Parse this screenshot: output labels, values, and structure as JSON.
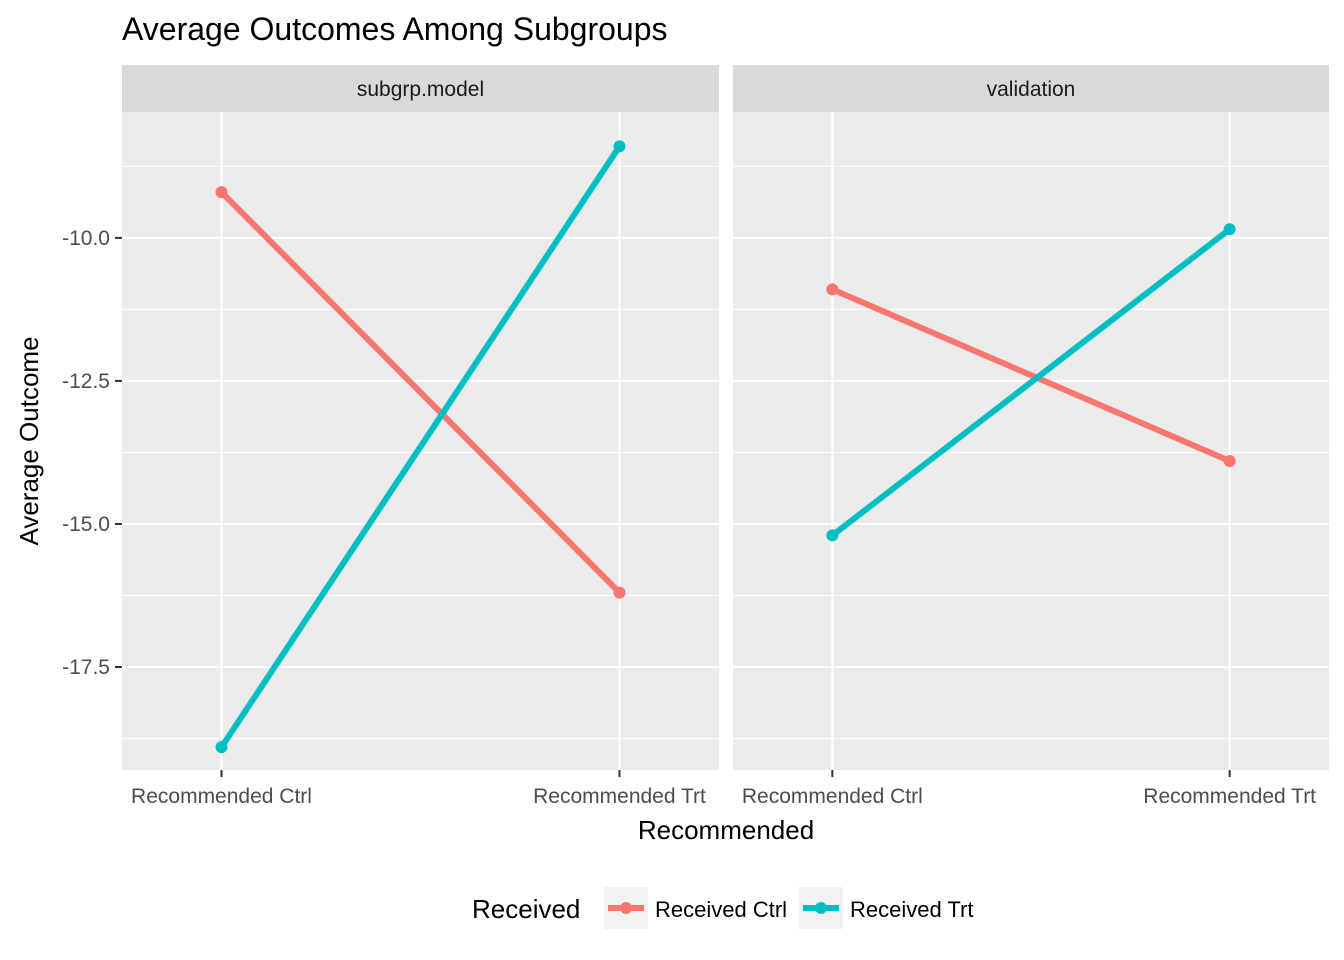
{
  "chart_data": {
    "type": "line",
    "title": "Average Outcomes Among Subgroups",
    "xlabel": "Recommended",
    "ylabel": "Average Outcome",
    "categories": [
      "Recommended Ctrl",
      "Recommended Trt"
    ],
    "ylim": [
      -19.3,
      -7.8
    ],
    "yticks": [
      -10.0,
      -12.5,
      -15.0,
      -17.5
    ],
    "ytick_labels": [
      "-10.0",
      "-12.5",
      "-15.0",
      "-17.5"
    ],
    "grid": true,
    "legend": {
      "title": "Received",
      "position": "bottom",
      "entries": [
        "Received Ctrl",
        "Received Trt"
      ]
    },
    "colors": {
      "Received Ctrl": "#F8766D",
      "Received Trt": "#00BFC4",
      "panel_bg": "#EBEBEB",
      "strip_bg": "#D9D9D9"
    },
    "panels": [
      {
        "name": "subgrp.model",
        "series": [
          {
            "name": "Received Ctrl",
            "values": [
              -9.2,
              -16.2
            ]
          },
          {
            "name": "Received Trt",
            "values": [
              -18.9,
              -8.4
            ]
          }
        ]
      },
      {
        "name": "validation",
        "series": [
          {
            "name": "Received Ctrl",
            "values": [
              -10.9,
              -13.9
            ]
          },
          {
            "name": "Received Trt",
            "values": [
              -15.2,
              -9.85
            ]
          }
        ]
      }
    ]
  }
}
